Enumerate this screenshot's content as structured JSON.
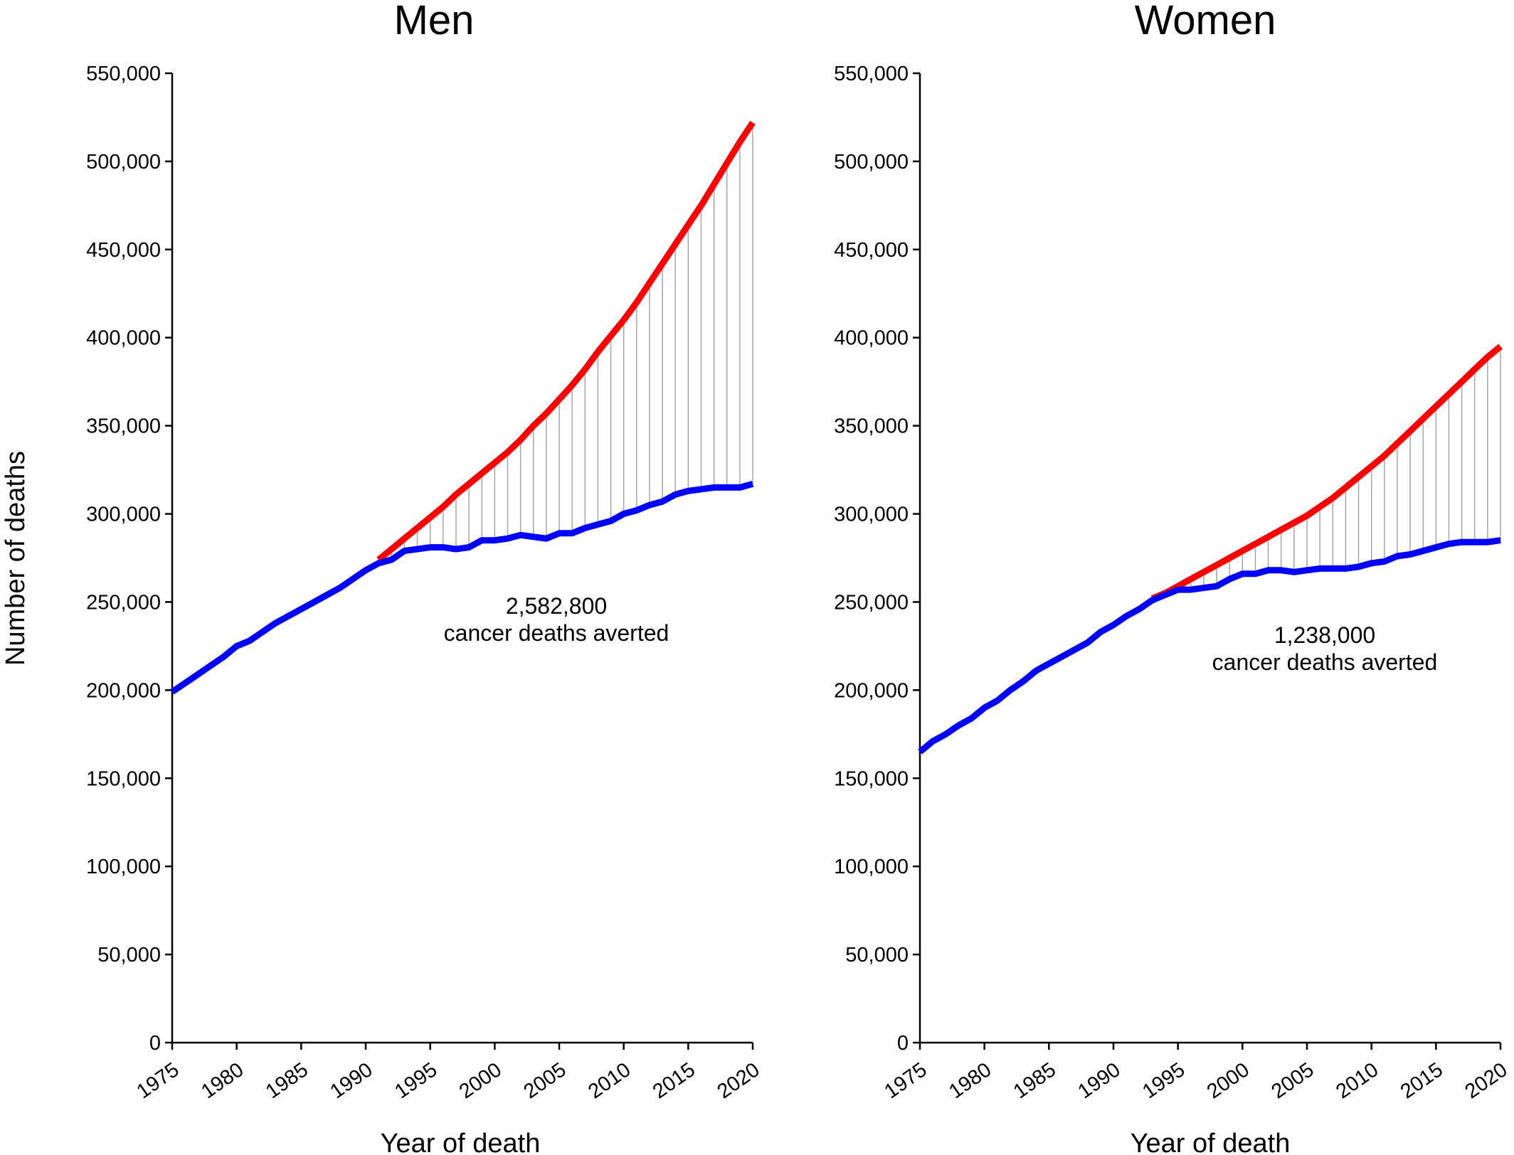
{
  "y_axis_title": "Number of deaths",
  "chart_data": [
    {
      "type": "line",
      "title": "Men",
      "xlabel": "Year of death",
      "ylabel": "Number of deaths",
      "xlim": [
        1975,
        2020
      ],
      "ylim": [
        0,
        550000
      ],
      "x_ticks": [
        1975,
        1980,
        1985,
        1990,
        1995,
        2000,
        2005,
        2010,
        2015,
        2020
      ],
      "y_ticks": [
        0,
        50000,
        100000,
        150000,
        200000,
        250000,
        300000,
        350000,
        400000,
        450000,
        500000,
        550000
      ],
      "grid": false,
      "annotation": [
        "2,582,800",
        "cancer deaths averted"
      ],
      "series": [
        {
          "color": "#ff0000",
          "x": [
            1991,
            1992,
            1993,
            1994,
            1995,
            1996,
            1997,
            1998,
            1999,
            2000,
            2001,
            2002,
            2003,
            2004,
            2005,
            2006,
            2007,
            2008,
            2009,
            2010,
            2011,
            2012,
            2013,
            2014,
            2015,
            2016,
            2017,
            2018,
            2019,
            2020
          ],
          "y": [
            274000,
            280000,
            286000,
            292000,
            298000,
            304000,
            311000,
            317000,
            323000,
            329000,
            335000,
            342000,
            350000,
            357000,
            365000,
            373000,
            382000,
            392000,
            401000,
            410000,
            420000,
            431000,
            442000,
            453000,
            464000,
            475000,
            487000,
            499000,
            511000,
            522000
          ]
        },
        {
          "color": "#0000ff",
          "x": [
            1975,
            1976,
            1977,
            1978,
            1979,
            1980,
            1981,
            1982,
            1983,
            1984,
            1985,
            1986,
            1987,
            1988,
            1989,
            1990,
            1991,
            1992,
            1993,
            1994,
            1995,
            1996,
            1997,
            1998,
            1999,
            2000,
            2001,
            2002,
            2003,
            2004,
            2005,
            2006,
            2007,
            2008,
            2009,
            2010,
            2011,
            2012,
            2013,
            2014,
            2015,
            2016,
            2017,
            2018,
            2019,
            2020
          ],
          "y": [
            199000,
            204000,
            209000,
            214000,
            219000,
            225000,
            228000,
            233000,
            238000,
            242000,
            246000,
            250000,
            254000,
            258000,
            263000,
            268000,
            272000,
            274000,
            279000,
            280000,
            281000,
            281000,
            280000,
            281000,
            285000,
            285000,
            286000,
            288000,
            287000,
            286000,
            289000,
            289000,
            292000,
            294000,
            296000,
            300000,
            302000,
            305000,
            307000,
            311000,
            313000,
            314000,
            315000,
            315000,
            315000,
            317000
          ]
        }
      ]
    },
    {
      "type": "line",
      "title": "Women",
      "xlabel": "Year of death",
      "ylabel": "",
      "xlim": [
        1975,
        2020
      ],
      "ylim": [
        0,
        550000
      ],
      "x_ticks": [
        1975,
        1980,
        1985,
        1990,
        1995,
        2000,
        2005,
        2010,
        2015,
        2020
      ],
      "y_ticks": [
        0,
        50000,
        100000,
        150000,
        200000,
        250000,
        300000,
        350000,
        400000,
        450000,
        500000,
        550000
      ],
      "grid": false,
      "annotation": [
        "1,238,000",
        "cancer deaths averted"
      ],
      "series": [
        {
          "color": "#ff0000",
          "x": [
            1993,
            1994,
            1995,
            1996,
            1997,
            1998,
            1999,
            2000,
            2001,
            2002,
            2003,
            2004,
            2005,
            2006,
            2007,
            2008,
            2009,
            2010,
            2011,
            2012,
            2013,
            2014,
            2015,
            2016,
            2017,
            2018,
            2019,
            2020
          ],
          "y": [
            252000,
            255000,
            259000,
            263000,
            267000,
            271000,
            275000,
            279000,
            283000,
            287000,
            291000,
            295000,
            299000,
            304000,
            309000,
            315000,
            321000,
            327000,
            333000,
            340000,
            347000,
            354000,
            361000,
            368000,
            375000,
            382000,
            389000,
            395000
          ]
        },
        {
          "color": "#0000ff",
          "x": [
            1975,
            1976,
            1977,
            1978,
            1979,
            1980,
            1981,
            1982,
            1983,
            1984,
            1985,
            1986,
            1987,
            1988,
            1989,
            1990,
            1991,
            1992,
            1993,
            1994,
            1995,
            1996,
            1997,
            1998,
            1999,
            2000,
            2001,
            2002,
            2003,
            2004,
            2005,
            2006,
            2007,
            2008,
            2009,
            2010,
            2011,
            2012,
            2013,
            2014,
            2015,
            2016,
            2017,
            2018,
            2019,
            2020
          ],
          "y": [
            165000,
            171000,
            175000,
            180000,
            184000,
            190000,
            194000,
            200000,
            205000,
            211000,
            215000,
            219000,
            223000,
            227000,
            233000,
            237000,
            242000,
            246000,
            251000,
            254000,
            257000,
            257000,
            258000,
            259000,
            263000,
            266000,
            266000,
            268000,
            268000,
            267000,
            268000,
            269000,
            269000,
            269000,
            270000,
            272000,
            273000,
            276000,
            277000,
            279000,
            281000,
            283000,
            284000,
            284000,
            284000,
            285000
          ]
        }
      ]
    }
  ]
}
